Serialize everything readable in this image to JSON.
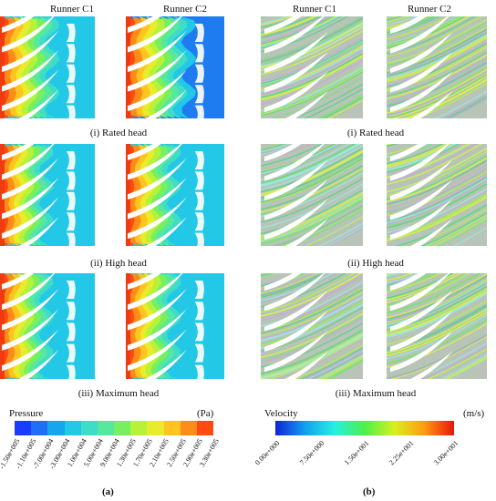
{
  "panel_a": {
    "columns": [
      "Runner C1",
      "Runner C2"
    ],
    "rows": [
      "(i) Rated head",
      "(ii) High head",
      "(iii) Maximum head"
    ],
    "legend_title": "Pressure",
    "legend_unit": "(Pa)",
    "legend_ticks": [
      "-1.50e+005",
      "-1.10e+005",
      "-7.00e+004",
      "-3.00e+004",
      "1.00e+004",
      "5.00e+004",
      "9.00e+004",
      "1.30e+005",
      "1.70e+005",
      "2.10e+005",
      "2.50e+005",
      "2.90e+005",
      "3.30e+005"
    ],
    "legend_colors": [
      "#1a3cff",
      "#1e6ff5",
      "#16a6ee",
      "#22c8e6",
      "#3fdcc8",
      "#55e89e",
      "#77f060",
      "#b6f23a",
      "#e8ec2a",
      "#ffc41f",
      "#ff8c18",
      "#ff4a12"
    ],
    "label": "(a)"
  },
  "panel_b": {
    "columns": [
      "Runner C1",
      "Runner C2"
    ],
    "rows": [
      "(i) Rated head",
      "(ii) High head",
      "(iii) Maximum head"
    ],
    "legend_title": "Velocity",
    "legend_unit": "(m/s)",
    "legend_ticks": [
      "0.00e+000",
      "7.50e+000",
      "1.50e+001",
      "2.25e+001",
      "3.00e+001"
    ],
    "gradient_colors": [
      "#1022d8",
      "#12a0f0",
      "#26f0e0",
      "#4cf04a",
      "#d8f020",
      "#ff9a10",
      "#e8160c"
    ],
    "label": "(b)"
  }
}
